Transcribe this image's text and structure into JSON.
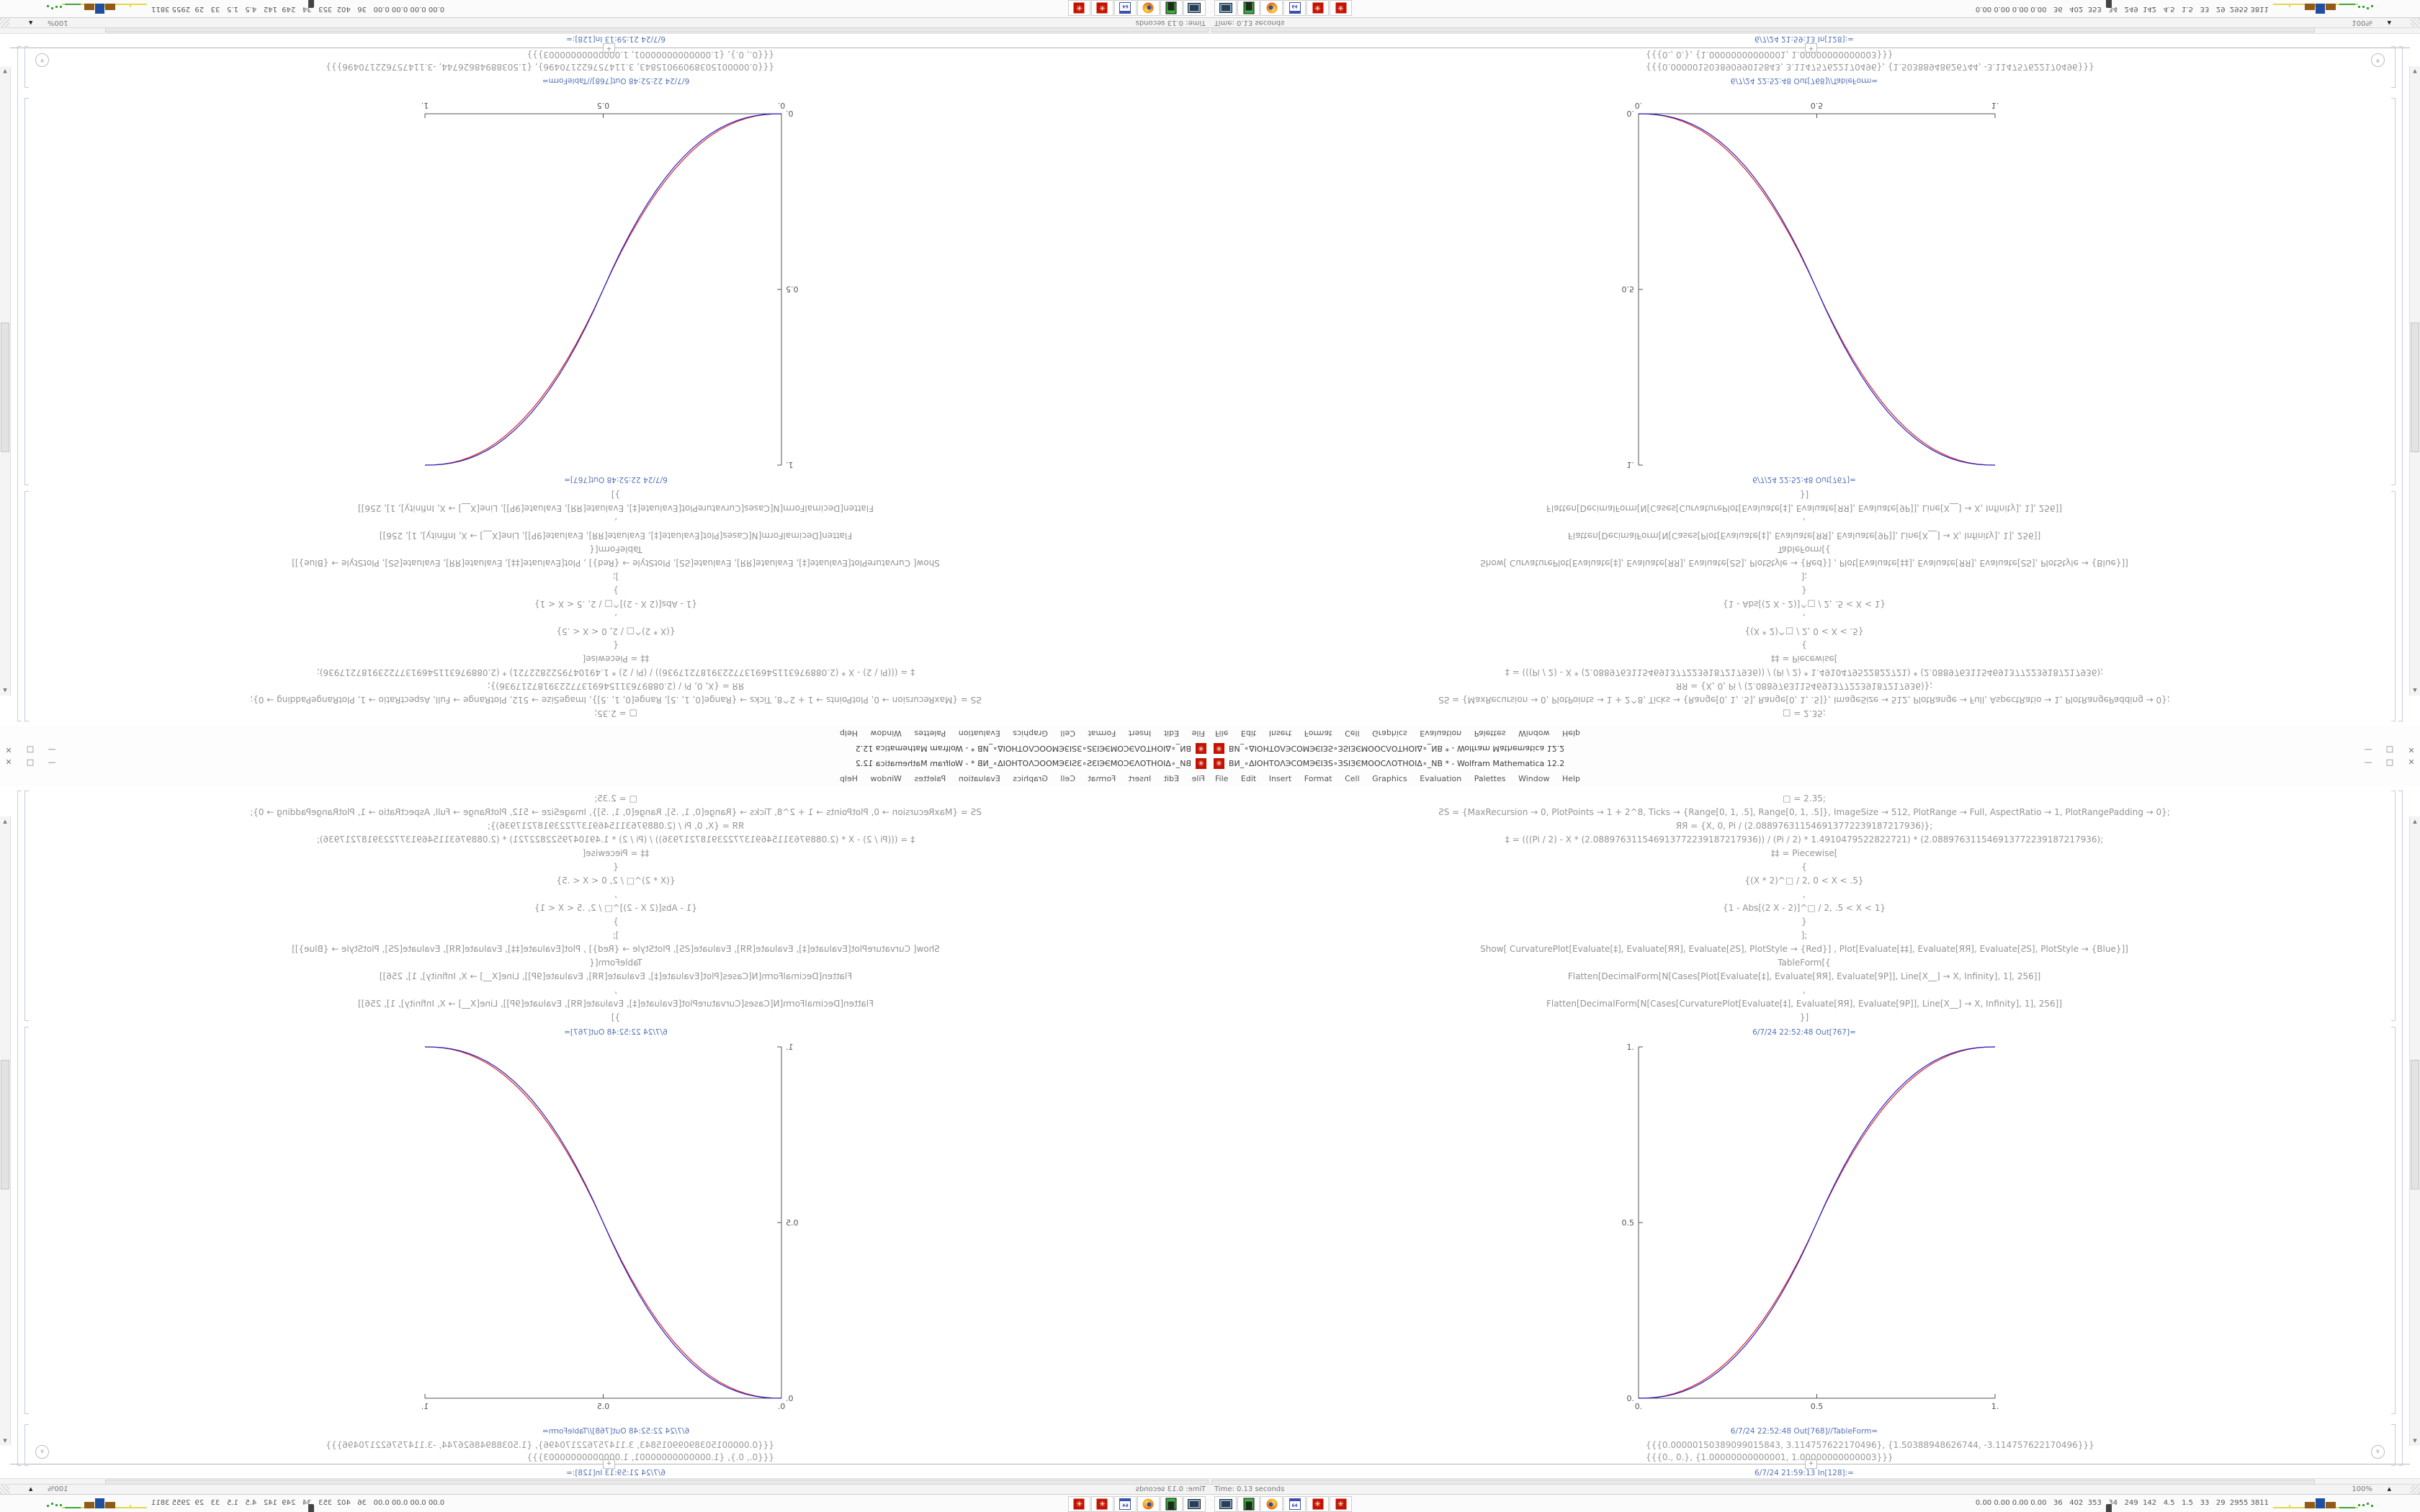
{
  "window": {
    "title": "ВИ_∘ΔΙΟΗΤΟΛЭCOMЭЄІЗЅ∘ЗЅІЗЄМООСΛΟΤΗΟΙΔ∘_NB * - Wolfram Mathematica 12.2",
    "controls": {
      "minimize": "—",
      "maximize": "□",
      "close": "✕"
    }
  },
  "icons": {
    "rosette": "✳",
    "scroll_up": "▲",
    "scroll_down": "▼",
    "suggest_chevron": "»",
    "insert_plus": "+",
    "floppy_label": "64",
    "zoom_caret": "▲"
  },
  "menu": {
    "items": [
      "File",
      "Edit",
      "Insert",
      "Format",
      "Cell",
      "Graphics",
      "Evaluation",
      "Palettes",
      "Window",
      "Help"
    ]
  },
  "notebook": {
    "code_lines": [
      "□ = 2.35;",
      "ƧЅ = {MaxRecursion → 0, PlotPoints → 1 + 2^8, Ticks → {Range[0, 1, .5], Range[0, 1, .5]}, ImageSize → 512, PlotRange → Full, AspectRatio → 1, PlotRangePadding → 0};",
      "ЯЯ = {X, 0, Pi / (2.088976311546913772239187217936)};",
      "‡ = (((Pi / 2) - X * (2.088976311546913772239187217936)) / (Pi / 2) * 1.4910479522822721) * (2.088976311546913772239187217936);",
      "‡‡ = Piecewise[",
      "{",
      "{(X * 2)^□ / 2, 0 < X < .5}",
      ",",
      "{1 - Abs[(2 X - 2)]^□ / 2, .5 < X < 1}",
      "}",
      "];",
      "Show[  CurvaturePlot[Evaluate[‡], Evaluate[ЯЯ], Evaluate[ƧЅ], PlotStyle → {Red}]  ,  Plot[Evaluate[‡‡], Evaluate[ЯЯ], Evaluate[ƧЅ], PlotStyle → {Blue}]]",
      "TableForm[{",
      "Flatten[DecimalForm[N[Cases[Plot[Evaluate[‡], Evaluate[ЯЯ], Evaluate[9P]], Line[X__] → X, Infinity], 1], 256]]",
      ",",
      "Flatten[DecimalForm[N[Cases[CurvaturePlot[Evaluate[‡], Evaluate[ЯЯ], Evaluate[9P]], Line[X__] → X, Infinity], 1], 256]]",
      "}]"
    ],
    "out1_label": "6/7/24 22:52:48 Out[767]=",
    "out2_label": "6/7/24 22:52:48 Out[768]//TableForm=",
    "table_rows": [
      "{{{0.00000150389099015843, 3.114757622170496}, {1.50388948626744, -3.114757622170496}}}",
      "{{{0., 0.}, {1.00000000000001, 1.00000000000003}}}"
    ],
    "in_label": "6/7/24 21:59:13 In[128]:="
  },
  "statusbar": {
    "time_text": "Time: 0.13 seconds",
    "zoom_level": "100%"
  },
  "taskbar": {
    "icons": [
      "computer-icon",
      "green-device-icon",
      "firefox-icon",
      "floppy64-icon",
      "mathematica-icon",
      "mathematica-icon"
    ],
    "tray_text": "0.00 0.00 0.00 0.00   36   402  353   34   249  142   4.5   1.5   33   29  2955 3811"
  },
  "colors": {
    "curve_red": "#dd2222",
    "curve_blue": "#2222cc",
    "axis": "#555555",
    "cell_label_blue": "#5573b8",
    "code_gray": "#949494",
    "rosette_red": "#c41200"
  },
  "chart_data": {
    "type": "line",
    "title": "",
    "xlabel": "",
    "ylabel": "",
    "xlim": [
      0,
      1
    ],
    "ylim": [
      0,
      1
    ],
    "grid": false,
    "legend_position": "none",
    "x_start": 0,
    "x_step": 0.025,
    "xticks": [
      0,
      0.5,
      1
    ],
    "xtick_labels": [
      "0.",
      "0.5",
      "1."
    ],
    "yticks": [
      0,
      0.5,
      1
    ],
    "ytick_labels": [
      "0.",
      "0.5",
      "1."
    ],
    "description": "Two nearly coincident smoothstep sigmoids on [0,1]: blue Plot of Piecewise y=(2x)^2.35/2 for 0<x<.5, y=1-|2x-2|^2.35/2 for .5<x<1; red CurvaturePlot variant",
    "series": [
      {
        "name": "CurvaturePlot (Red)",
        "color": "#dd2222",
        "values": [
          0,
          0.0006,
          0.0028,
          0.007,
          0.0134,
          0.0221,
          0.0333,
          0.047,
          0.0636,
          0.0829,
          0.1051,
          0.1303,
          0.1584,
          0.1897,
          0.2241,
          0.2617,
          0.3026,
          0.3468,
          0.3945,
          0.4455,
          0.5,
          0.5545,
          0.6055,
          0.6532,
          0.6974,
          0.7383,
          0.7759,
          0.8103,
          0.8416,
          0.8697,
          0.8949,
          0.9171,
          0.9364,
          0.953,
          0.9667,
          0.9779,
          0.9866,
          0.993,
          0.9972,
          0.9994,
          1
        ]
      },
      {
        "name": "Plot (Blue)",
        "color": "#2222cc",
        "values": [
          0,
          0.0004,
          0.0022,
          0.0058,
          0.0114,
          0.0192,
          0.0295,
          0.0424,
          0.058,
          0.0766,
          0.0981,
          0.1227,
          0.1505,
          0.1817,
          0.2162,
          0.2543,
          0.2959,
          0.3413,
          0.3904,
          0.4432,
          0.5,
          0.5568,
          0.6096,
          0.6587,
          0.7041,
          0.7457,
          0.7838,
          0.8183,
          0.8495,
          0.8773,
          0.9019,
          0.9234,
          0.942,
          0.9576,
          0.9705,
          0.9808,
          0.9886,
          0.9942,
          0.9978,
          0.9996,
          1
        ]
      }
    ],
    "table_form_values": [
      [
        [
          1.50389099015843e-06,
          3.114757622170496
        ],
        [
          1.50388948626744,
          -3.114757622170496
        ]
      ],
      [
        [
          0.0,
          0.0
        ],
        [
          1.00000000000001,
          1.00000000000003
        ]
      ]
    ]
  },
  "layout_note": "Same 1680x1050 desktop tiled 4x: top-left rotated 180deg, top-right flipped vertically, bottom-left mirrored horizontally, bottom-right original"
}
